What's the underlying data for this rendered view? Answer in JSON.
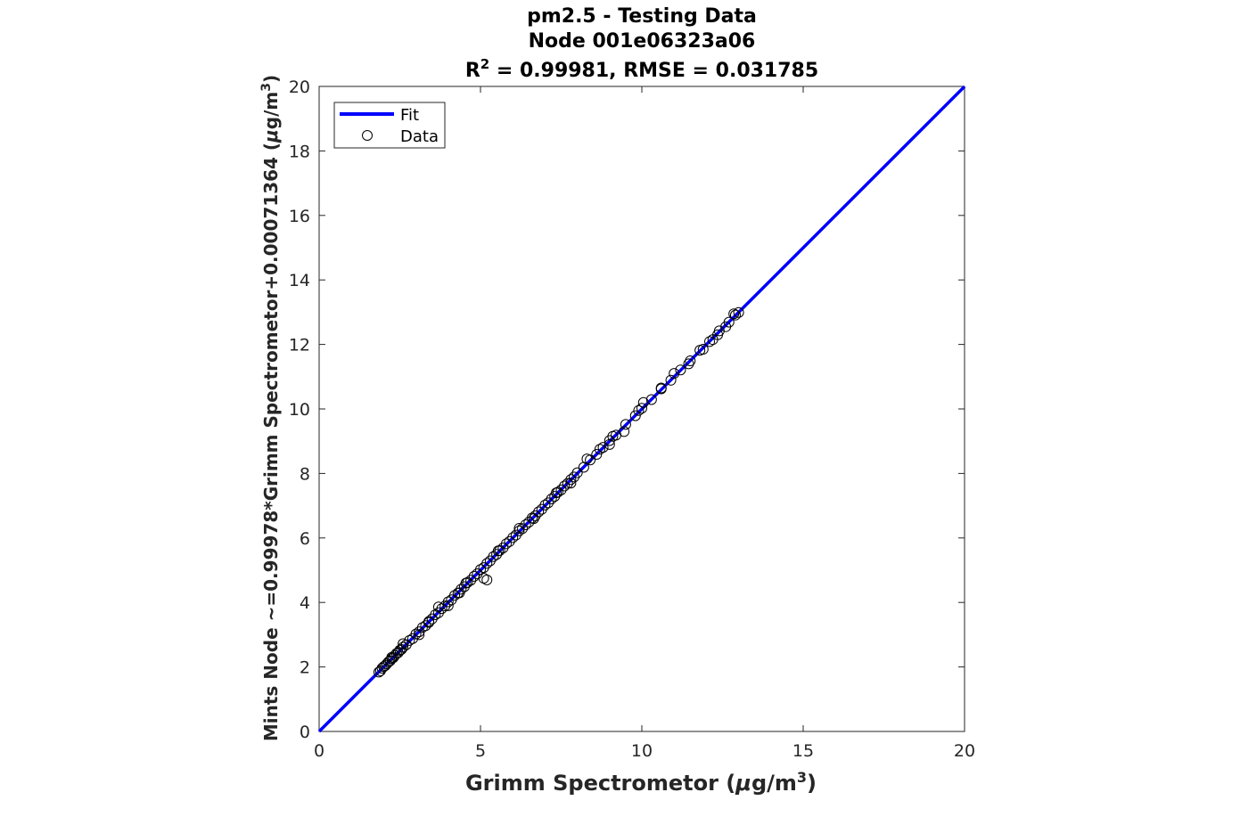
{
  "chart_data": {
    "type": "scatter",
    "title_lines": [
      "pm2.5 - Testing Data",
      "Node 001e06323a06"
    ],
    "stats_line": {
      "r_label": "R",
      "r_superscript": "2",
      "text": " = 0.99981, RMSE = 0.031785"
    },
    "xlabel": {
      "prefix": "Grimm Spectrometor (",
      "mu": "μ",
      "unit": "g/m",
      "superscript": "3",
      "suffix": ")"
    },
    "ylabel": {
      "prefix": "Mints Node ~=0.99978*Grimm Spectrometor+0.00071364 (",
      "mu": "μ",
      "unit": "g/m",
      "superscript": "3",
      "suffix": ")"
    },
    "xlim": [
      0,
      20
    ],
    "ylim": [
      0,
      20
    ],
    "xticks": [
      0,
      5,
      10,
      15,
      20
    ],
    "yticks": [
      0,
      2,
      4,
      6,
      8,
      10,
      12,
      14,
      16,
      18,
      20
    ],
    "grid": false,
    "legend": {
      "placement": "top-left",
      "entries": [
        "Fit",
        "Data"
      ]
    },
    "fit": {
      "name": "Fit",
      "slope": 0.99978,
      "intercept": 0.00071364,
      "x_range": [
        0,
        20
      ],
      "color": "#0000ff"
    },
    "series": [
      {
        "name": "Data",
        "marker": "open-circle",
        "color": "#000000",
        "points": [
          [
            1.85,
            1.84
          ],
          [
            1.9,
            1.88
          ],
          [
            1.95,
            1.96
          ],
          [
            2.0,
            2.01
          ],
          [
            2.05,
            2.04
          ],
          [
            2.1,
            2.1
          ],
          [
            2.15,
            2.16
          ],
          [
            2.2,
            2.19
          ],
          [
            2.25,
            2.26
          ],
          [
            2.3,
            2.29
          ],
          [
            2.35,
            2.36
          ],
          [
            2.4,
            2.42
          ],
          [
            2.45,
            2.44
          ],
          [
            2.5,
            2.52
          ],
          [
            2.55,
            2.54
          ],
          [
            2.6,
            2.61
          ],
          [
            2.7,
            2.69
          ],
          [
            2.8,
            2.82
          ],
          [
            2.9,
            2.88
          ],
          [
            3.0,
            3.02
          ],
          [
            3.1,
            3.09
          ],
          [
            3.2,
            3.22
          ],
          [
            3.3,
            3.28
          ],
          [
            3.4,
            3.41
          ],
          [
            3.5,
            3.49
          ],
          [
            3.6,
            3.62
          ],
          [
            3.7,
            3.68
          ],
          [
            3.8,
            3.81
          ],
          [
            3.9,
            3.89
          ],
          [
            4.0,
            4.02
          ],
          [
            4.1,
            4.08
          ],
          [
            4.2,
            4.22
          ],
          [
            4.3,
            4.29
          ],
          [
            4.4,
            4.41
          ],
          [
            4.5,
            4.49
          ],
          [
            4.6,
            4.62
          ],
          [
            4.7,
            4.69
          ],
          [
            4.8,
            4.81
          ],
          [
            4.9,
            4.89
          ],
          [
            5.0,
            5.02
          ],
          [
            5.1,
            5.08
          ],
          [
            5.2,
            5.21
          ],
          [
            5.3,
            5.29
          ],
          [
            5.4,
            5.42
          ],
          [
            5.5,
            5.49
          ],
          [
            5.6,
            5.61
          ],
          [
            5.7,
            5.69
          ],
          [
            5.8,
            5.82
          ],
          [
            5.9,
            5.89
          ],
          [
            6.0,
            6.01
          ],
          [
            6.1,
            6.09
          ],
          [
            6.2,
            6.22
          ],
          [
            6.3,
            6.29
          ],
          [
            6.4,
            6.41
          ],
          [
            6.5,
            6.49
          ],
          [
            6.6,
            6.62
          ],
          [
            6.7,
            6.69
          ],
          [
            6.8,
            6.81
          ],
          [
            6.9,
            6.89
          ],
          [
            7.0,
            7.02
          ],
          [
            7.1,
            7.09
          ],
          [
            7.2,
            7.21
          ],
          [
            7.3,
            7.29
          ],
          [
            7.4,
            7.42
          ],
          [
            7.5,
            7.49
          ],
          [
            7.6,
            7.61
          ],
          [
            7.7,
            7.69
          ],
          [
            7.8,
            7.81
          ],
          [
            7.9,
            7.89
          ],
          [
            8.0,
            8.02
          ],
          [
            8.2,
            8.19
          ],
          [
            8.4,
            8.42
          ],
          [
            8.6,
            8.59
          ],
          [
            8.8,
            8.81
          ],
          [
            9.0,
            9.02
          ],
          [
            9.2,
            9.19
          ],
          [
            9.5,
            9.52
          ],
          [
            9.8,
            9.79
          ],
          [
            10.0,
            10.02
          ],
          [
            10.3,
            10.29
          ],
          [
            10.6,
            10.62
          ],
          [
            10.9,
            10.89
          ],
          [
            11.2,
            11.21
          ],
          [
            11.5,
            11.49
          ],
          [
            11.8,
            11.82
          ],
          [
            12.1,
            12.09
          ],
          [
            12.4,
            12.42
          ],
          [
            12.7,
            12.69
          ],
          [
            12.9,
            12.91
          ],
          [
            13.0,
            12.99
          ],
          [
            3.7,
            3.86
          ],
          [
            4.0,
            3.9
          ],
          [
            4.55,
            4.6
          ],
          [
            5.1,
            4.75
          ],
          [
            5.2,
            4.7
          ],
          [
            6.2,
            6.3
          ],
          [
            7.8,
            7.7
          ],
          [
            8.3,
            8.45
          ],
          [
            9.0,
            8.9
          ],
          [
            9.45,
            9.3
          ],
          [
            9.9,
            9.95
          ],
          [
            10.05,
            10.2
          ],
          [
            11.0,
            11.1
          ],
          [
            11.9,
            11.85
          ],
          [
            12.2,
            12.15
          ],
          [
            12.6,
            12.55
          ],
          [
            12.85,
            12.95
          ],
          [
            2.25,
            2.3
          ],
          [
            2.6,
            2.72
          ],
          [
            3.1,
            3.0
          ],
          [
            3.4,
            3.38
          ],
          [
            4.35,
            4.3
          ],
          [
            5.55,
            5.6
          ],
          [
            6.65,
            6.6
          ],
          [
            7.35,
            7.4
          ],
          [
            8.7,
            8.75
          ],
          [
            9.1,
            9.15
          ],
          [
            10.6,
            10.65
          ],
          [
            11.45,
            11.4
          ],
          [
            12.35,
            12.3
          ]
        ]
      }
    ]
  }
}
